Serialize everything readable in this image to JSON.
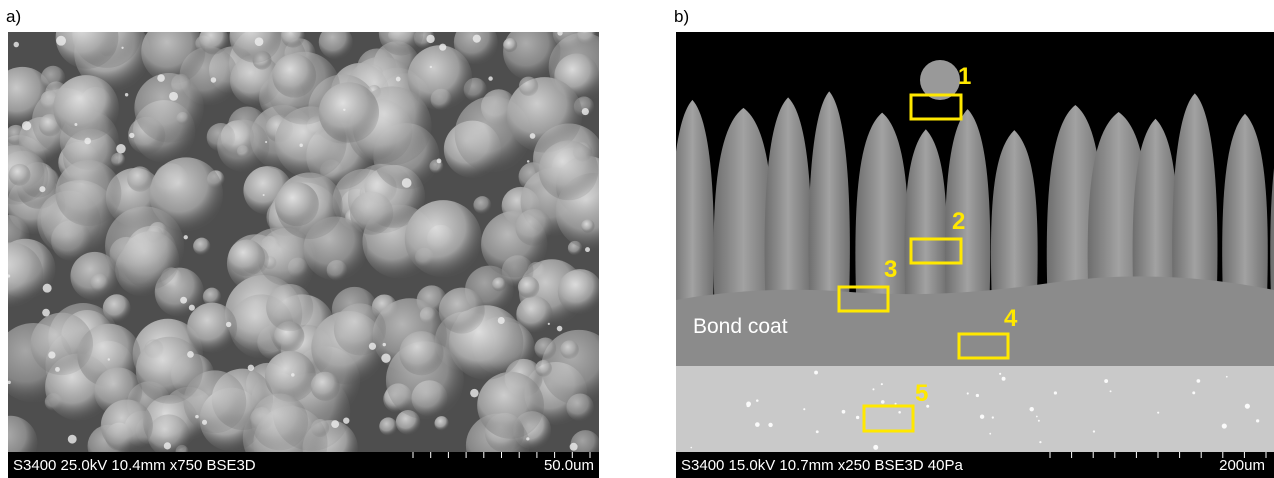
{
  "panels": [
    {
      "label": "a)",
      "info": "S3400 25.0kV 10.4mm x750 BSE3D",
      "scale": "50.0um"
    },
    {
      "label": "b)",
      "info": "S3400 15.0kV 10.7mm x250 BSE3D 40Pa",
      "scale": "200um",
      "annotation": "Bond coat",
      "regions": [
        "1",
        "2",
        "3",
        "4",
        "5"
      ]
    }
  ]
}
